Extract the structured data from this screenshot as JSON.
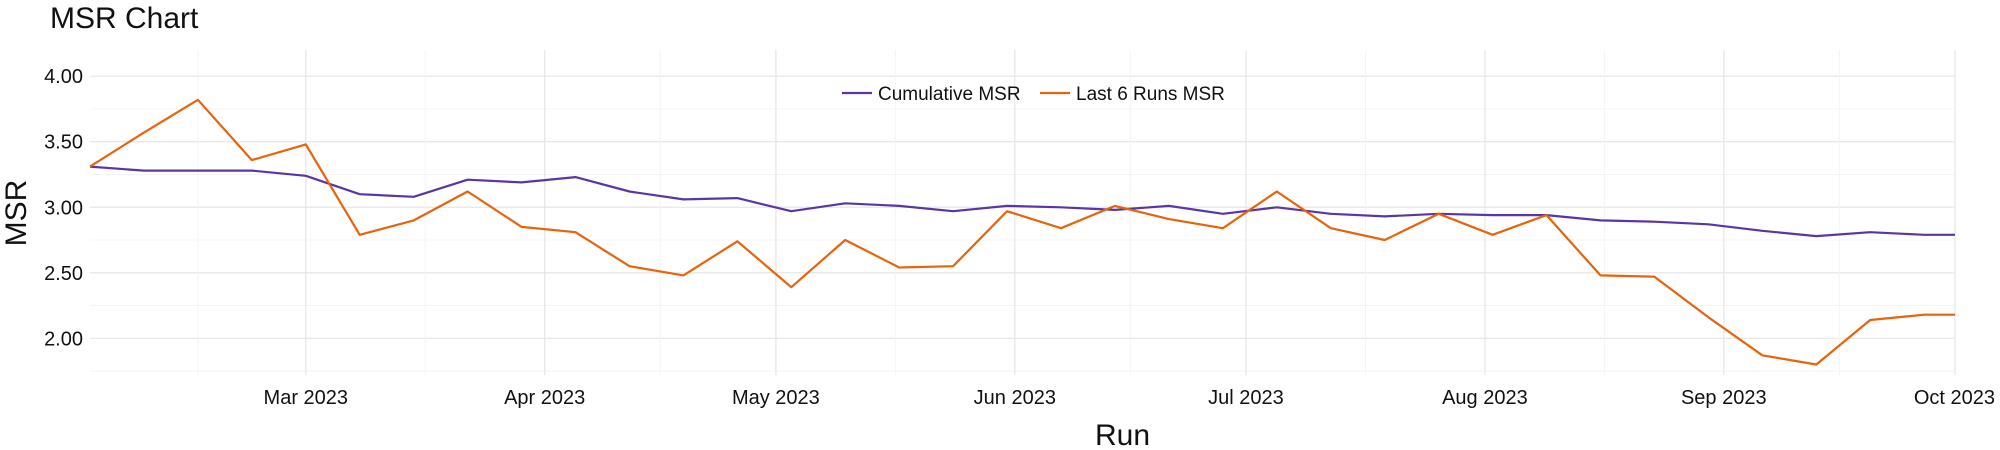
{
  "chart_data": {
    "type": "line",
    "title": "MSR Chart",
    "xlabel": "Run",
    "ylabel": "MSR",
    "x_tick_labels": [
      "Mar 2023",
      "Apr 2023",
      "May 2023",
      "Jun 2023",
      "Jul 2023",
      "Aug 2023",
      "Sep 2023",
      "Oct 2023"
    ],
    "y_tick_labels": [
      "4.00",
      "3.50",
      "3.00",
      "2.50",
      "2.00"
    ],
    "y_ticks": [
      4.0,
      3.5,
      3.0,
      2.5,
      2.0
    ],
    "ylim": [
      1.72,
      4.2
    ],
    "xlim": [
      "2023-02-01",
      "2023-10-01"
    ],
    "grid": true,
    "legend_position": "top-center",
    "x": [
      "2023-02-01",
      "2023-02-08",
      "2023-02-15",
      "2023-02-22",
      "2023-03-01",
      "2023-03-08",
      "2023-03-15",
      "2023-03-22",
      "2023-03-29",
      "2023-04-05",
      "2023-04-12",
      "2023-04-19",
      "2023-04-26",
      "2023-05-03",
      "2023-05-10",
      "2023-05-17",
      "2023-05-24",
      "2023-05-31",
      "2023-06-07",
      "2023-06-14",
      "2023-06-21",
      "2023-06-28",
      "2023-07-05",
      "2023-07-12",
      "2023-07-19",
      "2023-07-26",
      "2023-08-02",
      "2023-08-09",
      "2023-08-16",
      "2023-08-23",
      "2023-08-30",
      "2023-09-06",
      "2023-09-13",
      "2023-09-20",
      "2023-09-27",
      "2023-10-01"
    ],
    "series": [
      {
        "name": "Cumulative MSR",
        "color": "#5b35a5",
        "values": [
          3.31,
          3.28,
          3.28,
          3.28,
          3.24,
          3.1,
          3.08,
          3.21,
          3.19,
          3.23,
          3.12,
          3.06,
          3.07,
          2.97,
          3.03,
          3.01,
          2.97,
          3.01,
          3.0,
          2.98,
          3.01,
          2.95,
          3.0,
          2.95,
          2.93,
          2.95,
          2.94,
          2.94,
          2.9,
          2.89,
          2.87,
          2.82,
          2.78,
          2.81,
          2.79,
          2.79
        ]
      },
      {
        "name": "Last 6 Runs MSR",
        "color": "#e8630a",
        "values": [
          3.31,
          3.57,
          3.82,
          3.36,
          3.48,
          2.79,
          2.9,
          3.12,
          2.85,
          2.81,
          2.55,
          2.48,
          2.74,
          2.39,
          2.75,
          2.54,
          2.55,
          2.97,
          2.84,
          3.01,
          2.91,
          2.84,
          3.12,
          2.84,
          2.75,
          2.95,
          2.79,
          2.94,
          2.48,
          2.47,
          2.16,
          1.87,
          1.8,
          2.14,
          2.18,
          2.18
        ]
      }
    ]
  }
}
